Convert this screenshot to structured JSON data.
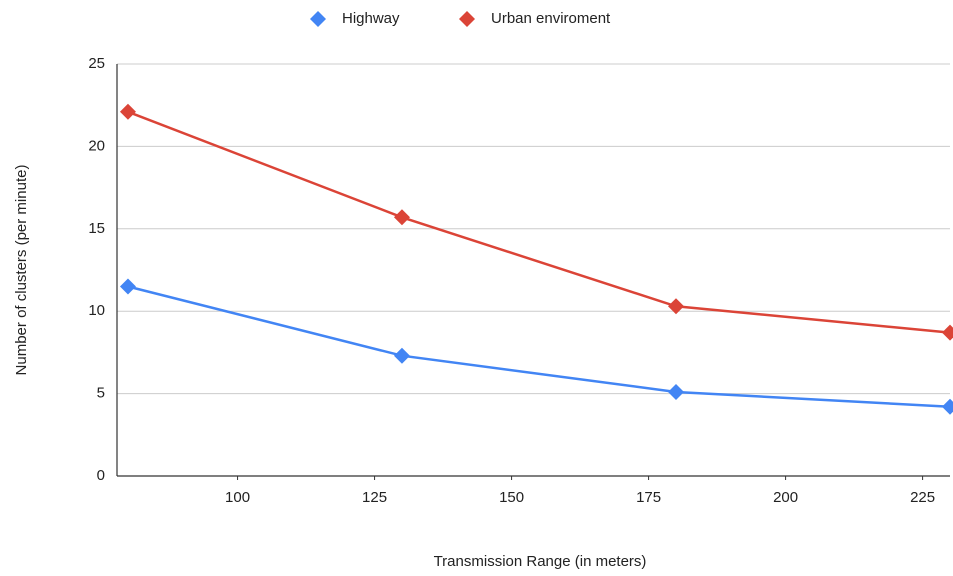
{
  "chart_data": {
    "type": "line",
    "x_label": "Transmission Range (in meters)",
    "y_label": "Number of clusters (per minute)",
    "x": [
      80,
      130,
      180,
      230
    ],
    "series": [
      {
        "name": "Highway",
        "color": "#4285f4",
        "values": [
          11.5,
          7.3,
          5.1,
          4.2
        ]
      },
      {
        "name": "Urban enviroment",
        "color": "#db4437",
        "values": [
          22.1,
          15.7,
          10.3,
          8.7
        ]
      }
    ],
    "xlim": [
      78,
      230
    ],
    "xticks": [
      100,
      125,
      150,
      175,
      200,
      225
    ],
    "ylim": [
      0,
      25
    ],
    "yticks": [
      0,
      5,
      10,
      15,
      20,
      25
    ],
    "grid": true,
    "legend": "top"
  }
}
